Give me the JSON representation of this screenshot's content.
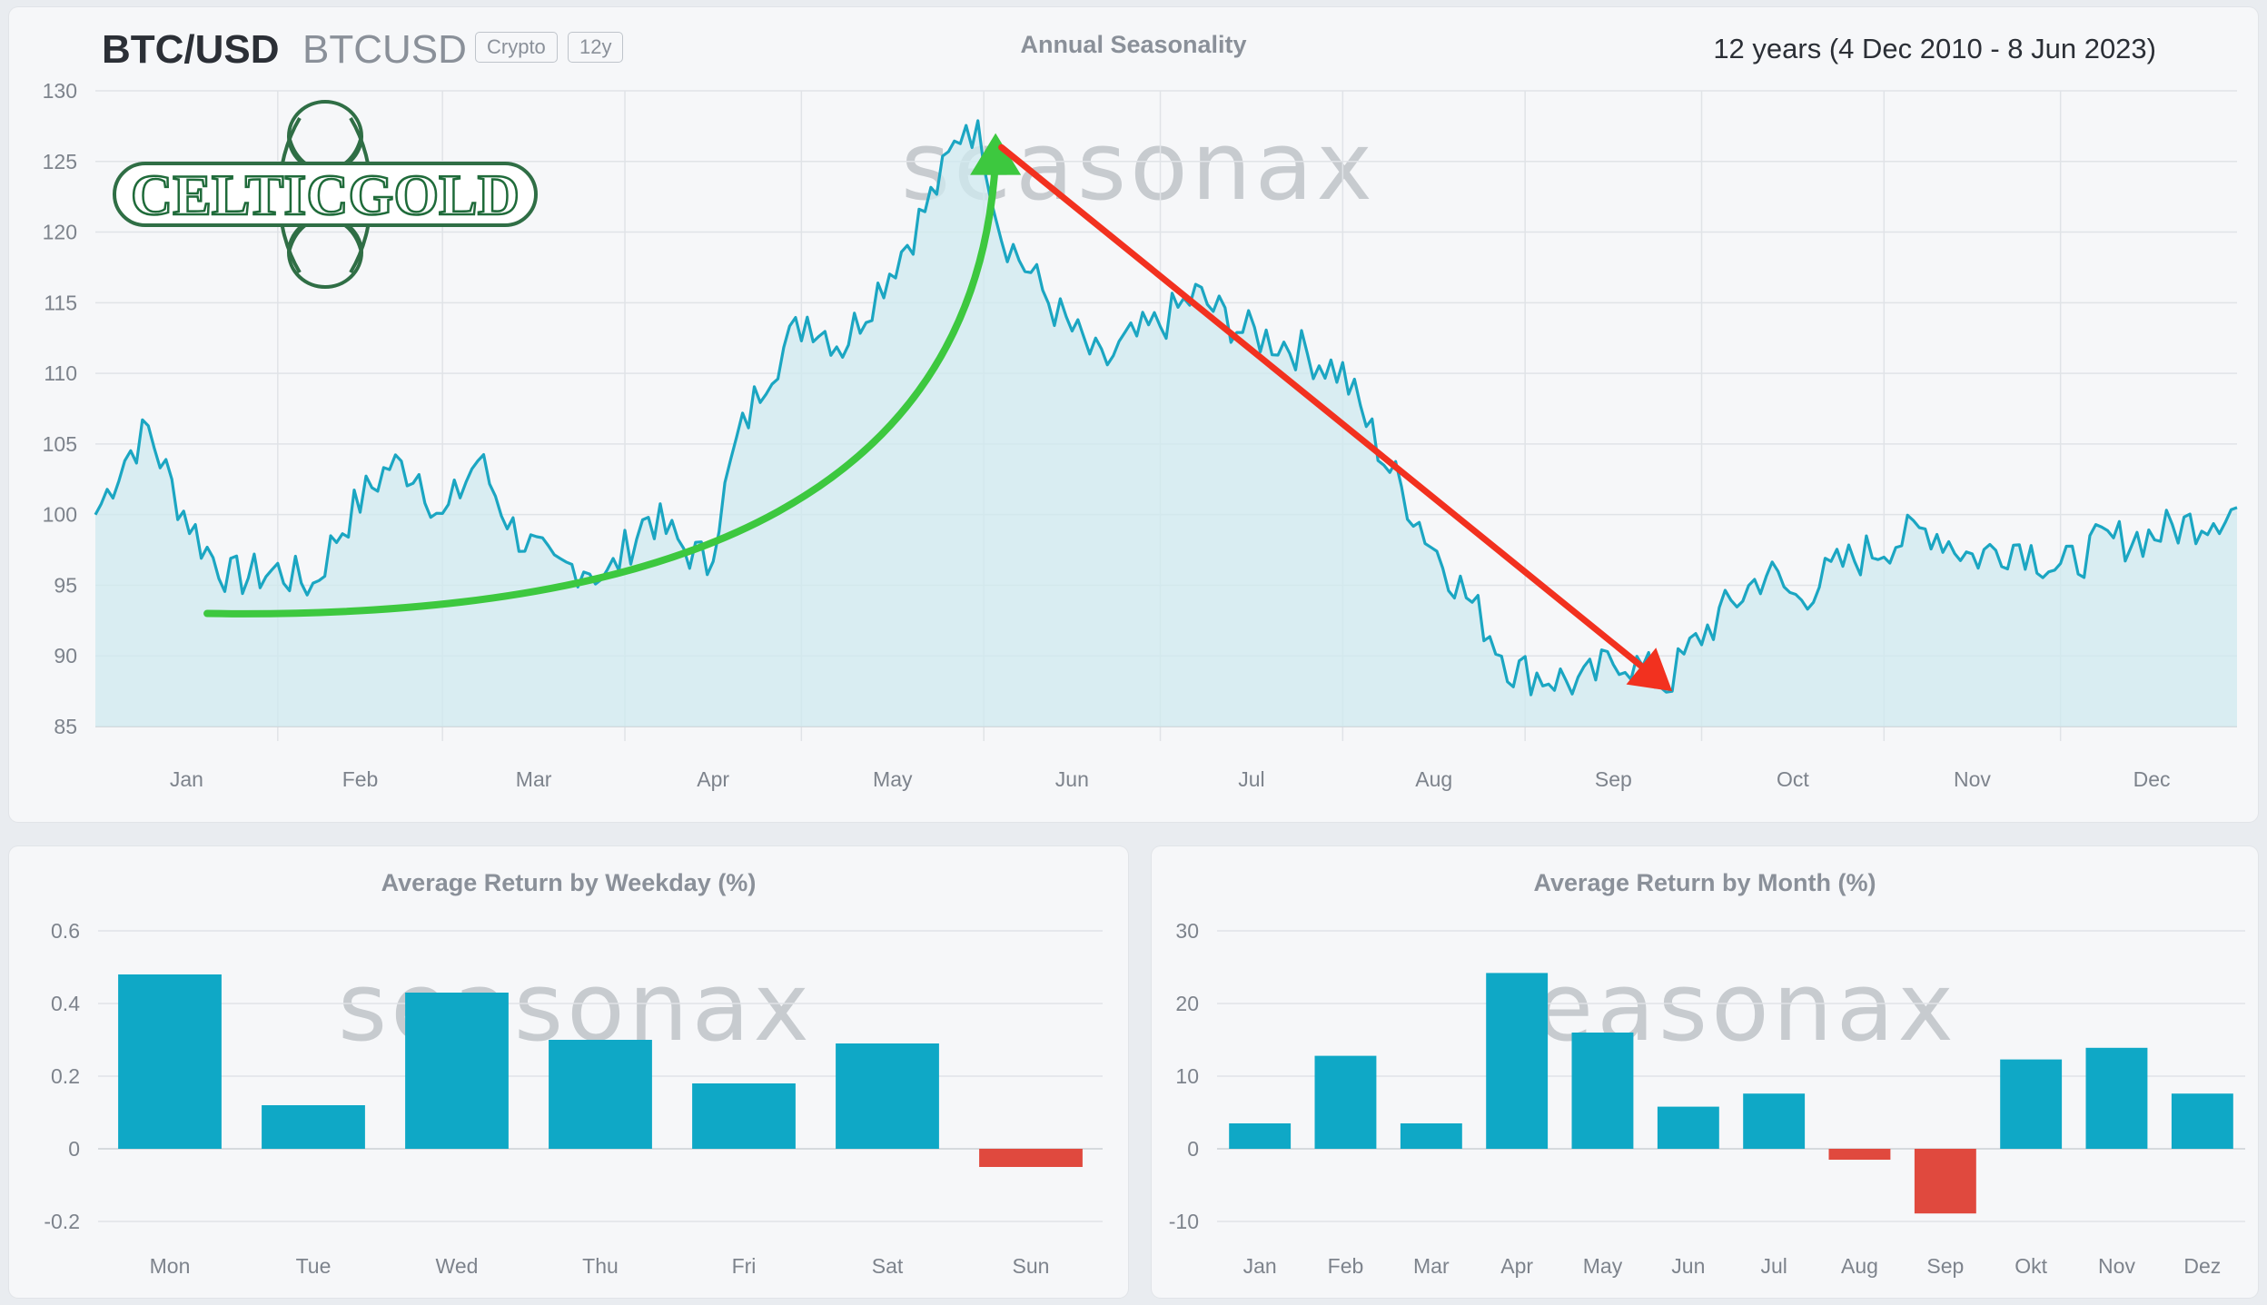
{
  "header": {
    "ticker": "BTC/USD",
    "symbol": "BTCUSD",
    "badges": [
      "Crypto",
      "12y"
    ],
    "title": "Annual Seasonality",
    "range": "12 years (4 Dec 2010 -  8 Jun 2023)"
  },
  "logo": {
    "text": "CELTICGOLD",
    "color": "#1f6b3a"
  },
  "watermark": "seasonax",
  "colors": {
    "line": "#1ba6c2",
    "area": "#cfe9ef",
    "bar_positive": "#0fa8c6",
    "bar_negative": "#e0493e",
    "arrow_up": "#3dc83f",
    "arrow_down": "#f2311f"
  },
  "chart_data": [
    {
      "type": "area",
      "title": "Annual Seasonality",
      "ylim": [
        85,
        130
      ],
      "yticks": [
        85,
        90,
        95,
        100,
        105,
        110,
        115,
        120,
        125,
        130
      ],
      "months": [
        "Jan",
        "Feb",
        "Mar",
        "Apr",
        "May",
        "Jun",
        "Jul",
        "Aug",
        "Sep",
        "Oct",
        "Nov",
        "Dec"
      ],
      "grid": true,
      "x_anchor_day": [
        1,
        6,
        10,
        15,
        19,
        24,
        32,
        38,
        42,
        46,
        51,
        56,
        60,
        66,
        72,
        79,
        84,
        88,
        95,
        100,
        105,
        110,
        115,
        122,
        128,
        134,
        140,
        145,
        149,
        152,
        155,
        160,
        165,
        172,
        176,
        182,
        188,
        196,
        204,
        213,
        220,
        228,
        236,
        242,
        248,
        254,
        260,
        268,
        274,
        280,
        285,
        290,
        298,
        306,
        313,
        320,
        328,
        335,
        342,
        350,
        358,
        365
      ],
      "y_anchor_value": [
        100,
        104,
        106,
        101,
        98,
        95.5,
        96,
        95,
        98.5,
        101,
        103.5,
        103,
        99.5,
        104,
        99,
        96,
        96.5,
        95.5,
        100,
        98,
        96.5,
        105,
        110,
        114,
        112,
        116,
        120,
        124,
        128,
        126,
        120,
        117,
        114,
        110.5,
        112,
        113.5,
        115.5,
        113,
        112,
        110,
        104,
        98,
        93,
        89,
        88.5,
        88,
        90,
        88,
        91.5,
        94,
        96,
        94,
        96.5,
        98,
        99,
        97,
        98,
        96,
        98,
        98.5,
        99.5,
        100.5
      ],
      "annotations": [
        {
          "kind": "arrow",
          "color": "green",
          "from_day": 20,
          "from_value": 93,
          "to_day": 154,
          "to_value": 127
        },
        {
          "kind": "arrow",
          "color": "red",
          "from_day": 155,
          "from_value": 126,
          "to_day": 269,
          "to_value": 87.5
        }
      ]
    },
    {
      "type": "bar",
      "title": "Average Return by Weekday (%)",
      "categories": [
        "Mon",
        "Tue",
        "Wed",
        "Thu",
        "Fri",
        "Sat",
        "Sun"
      ],
      "values": [
        0.48,
        0.12,
        0.43,
        0.3,
        0.18,
        0.29,
        -0.05
      ],
      "ylim": [
        -0.2,
        0.6
      ],
      "yticks": [
        -0.2,
        0,
        0.2,
        0.4,
        0.6
      ]
    },
    {
      "type": "bar",
      "title": "Average Return by Month (%)",
      "categories": [
        "Jan",
        "Feb",
        "Mar",
        "Apr",
        "May",
        "Jun",
        "Jul",
        "Aug",
        "Sep",
        "Okt",
        "Nov",
        "Dez"
      ],
      "values": [
        3.5,
        12.8,
        3.5,
        24.2,
        16,
        5.8,
        7.6,
        -1.5,
        -8.9,
        12.3,
        13.9,
        7.6
      ],
      "ylim": [
        -10,
        30
      ],
      "yticks": [
        -10,
        0,
        10,
        20,
        30
      ]
    }
  ]
}
